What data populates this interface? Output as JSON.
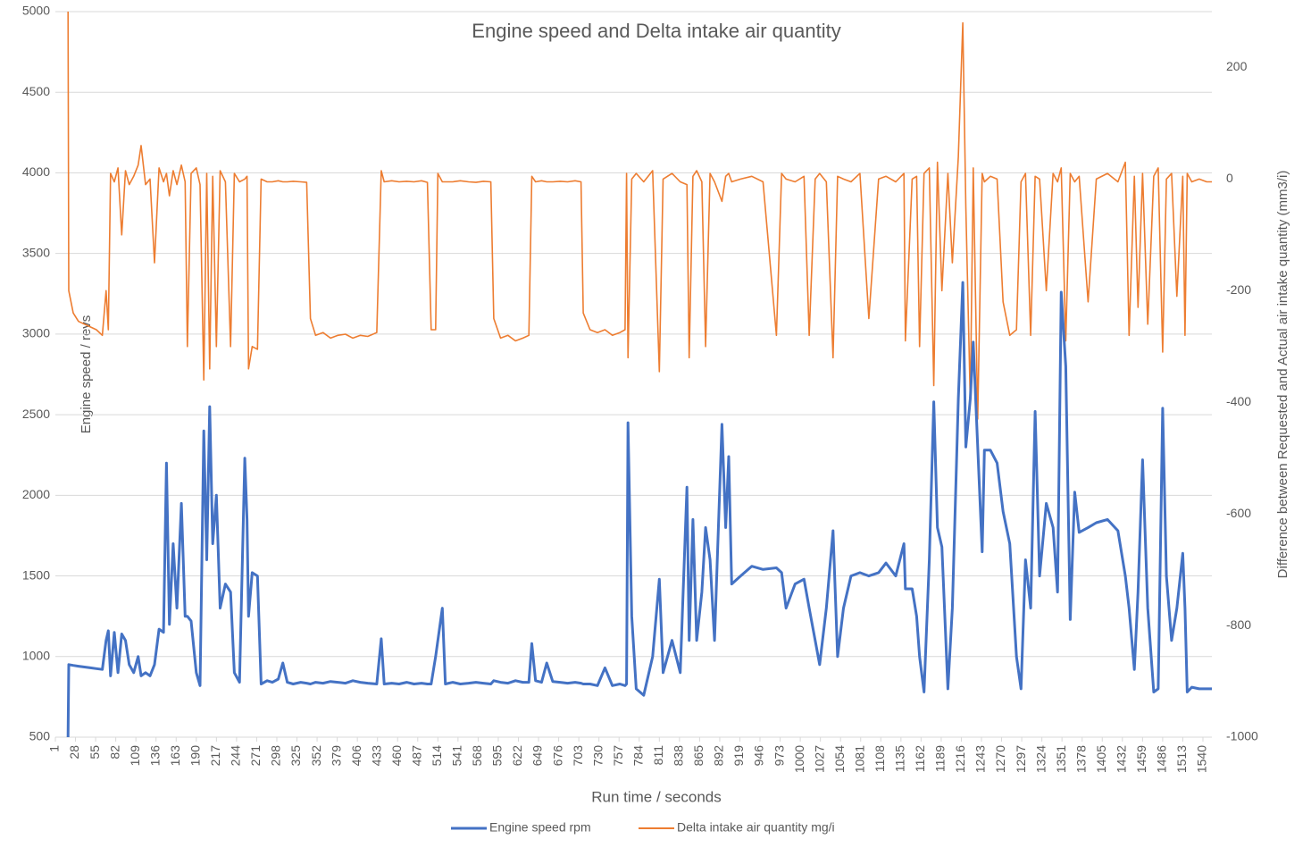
{
  "chart_data": {
    "type": "line",
    "title": "Engine speed and Delta intake air quantity",
    "xlabel": "Run time / seconds",
    "ylabel": "Engine speed / revs",
    "y2label": "Difference between Requested and Actual air intake quantity  (mm3/i)",
    "x": [
      18,
      19,
      25,
      32,
      40,
      48,
      56,
      64,
      69,
      72,
      75,
      80,
      85,
      90,
      95,
      100,
      106,
      112,
      116,
      122,
      128,
      134,
      140,
      146,
      150,
      154,
      159,
      164,
      170,
      175,
      178,
      183,
      190,
      195,
      200,
      204,
      208,
      212,
      217,
      222,
      229,
      236,
      241,
      248,
      255,
      258,
      260,
      265,
      272,
      277,
      285,
      292,
      300,
      306,
      312,
      320,
      330,
      338,
      343,
      350,
      360,
      370,
      380,
      390,
      400,
      410,
      420,
      432,
      438,
      442,
      452,
      462,
      472,
      482,
      492,
      500,
      505,
      511,
      514,
      520,
      524,
      534,
      544,
      555,
      565,
      575,
      585,
      589,
      598,
      608,
      618,
      628,
      636,
      640,
      645,
      653,
      660,
      668,
      678,
      688,
      698,
      706,
      709,
      718,
      728,
      738,
      748,
      758,
      765,
      767,
      769,
      774,
      780,
      790,
      802,
      811,
      816,
      828,
      839,
      848,
      851,
      856,
      861,
      868,
      873,
      879,
      885,
      895,
      900,
      904,
      908,
      920,
      935,
      950,
      968,
      975,
      981,
      993,
      1005,
      1012,
      1020,
      1026,
      1035,
      1044,
      1050,
      1058,
      1068,
      1080,
      1092,
      1105,
      1115,
      1128,
      1139,
      1141,
      1150,
      1156,
      1160,
      1166,
      1173,
      1179,
      1184,
      1190,
      1198,
      1204,
      1212,
      1218,
      1222,
      1228,
      1232,
      1238,
      1244,
      1247,
      1255,
      1264,
      1272,
      1281,
      1290,
      1296,
      1302,
      1309,
      1315,
      1321,
      1330,
      1339,
      1345,
      1350,
      1356,
      1362,
      1368,
      1374,
      1386,
      1397,
      1412,
      1426,
      1436,
      1441,
      1448,
      1453,
      1459,
      1466,
      1474,
      1480,
      1486,
      1491,
      1498,
      1505,
      1513,
      1516,
      1519,
      1525,
      1535,
      1545,
      1552
    ],
    "series": [
      {
        "name": "Engine speed rpm",
        "color": "#4472c4",
        "axis": "y",
        "values": [
          500,
          950,
          945,
          940,
          935,
          930,
          925,
          920,
          1100,
          1160,
          880,
          1150,
          900,
          1140,
          1100,
          950,
          900,
          1000,
          880,
          900,
          880,
          950,
          1170,
          1150,
          2200,
          1200,
          1700,
          1300,
          1950,
          1250,
          1250,
          1220,
          900,
          820,
          2400,
          1600,
          2550,
          1700,
          2000,
          1300,
          1450,
          1400,
          900,
          840,
          2230,
          1850,
          1250,
          1520,
          1500,
          830,
          850,
          840,
          860,
          960,
          840,
          830,
          840,
          835,
          830,
          840,
          835,
          845,
          840,
          835,
          850,
          840,
          835,
          830,
          1110,
          830,
          835,
          830,
          840,
          830,
          835,
          830,
          830,
          1000,
          1100,
          1300,
          830,
          840,
          830,
          835,
          840,
          835,
          830,
          850,
          840,
          835,
          850,
          840,
          840,
          1080,
          850,
          840,
          960,
          845,
          840,
          835,
          840,
          835,
          830,
          830,
          820,
          930,
          820,
          830,
          820,
          830,
          2450,
          1250,
          800,
          760,
          1000,
          1480,
          900,
          1100,
          900,
          2050,
          1100,
          1850,
          1100,
          1400,
          1800,
          1600,
          1100,
          2440,
          1800,
          2240,
          1450,
          1500,
          1560,
          1540,
          1550,
          1520,
          1300,
          1450,
          1480,
          1300,
          1100,
          950,
          1300,
          1780,
          1000,
          1300,
          1500,
          1520,
          1500,
          1520,
          1580,
          1500,
          1700,
          1420,
          1420,
          1250,
          1000,
          780,
          1600,
          2580,
          1800,
          1680,
          800,
          1300,
          2600,
          3320,
          2300,
          2600,
          2950,
          2300,
          1650,
          2280,
          2280,
          2200,
          1900,
          1700,
          1000,
          800,
          1600,
          1300,
          2520,
          1500,
          1950,
          1800,
          1400,
          3260,
          2800,
          1230,
          2020,
          1770,
          1800,
          1830,
          1850,
          1780,
          1500,
          1300,
          920,
          1400,
          2220,
          1300,
          780,
          800,
          2540,
          1500,
          1100,
          1300,
          1640,
          1300,
          780,
          810,
          800,
          800,
          800
        ]
      },
      {
        "name": "Delta intake air quantity mg/i",
        "color": "#ed7d31",
        "axis": "y2",
        "values": [
          300,
          -200,
          -240,
          -255,
          -260,
          -265,
          -270,
          -280,
          -200,
          -270,
          10,
          -5,
          20,
          -100,
          15,
          -10,
          5,
          25,
          60,
          -10,
          0,
          -150,
          20,
          -5,
          10,
          -30,
          15,
          -10,
          25,
          -5,
          -300,
          10,
          20,
          -10,
          -360,
          10,
          -340,
          5,
          -300,
          15,
          -5,
          -300,
          10,
          -5,
          0,
          5,
          -340,
          -300,
          -305,
          0,
          -5,
          -5,
          -3,
          -5,
          -5,
          -4,
          -5,
          -6,
          -250,
          -280,
          -275,
          -285,
          -280,
          -278,
          -285,
          -280,
          -282,
          -275,
          15,
          -5,
          -3,
          -5,
          -4,
          -5,
          -3,
          -6,
          -270,
          -270,
          10,
          -5,
          -5,
          -5,
          -3,
          -5,
          -6,
          -4,
          -5,
          -250,
          -285,
          -280,
          -290,
          -285,
          -280,
          5,
          -5,
          -3,
          -5,
          -5,
          -4,
          -5,
          -3,
          -5,
          -240,
          -270,
          -275,
          -270,
          -280,
          -275,
          -270,
          10,
          -320,
          0,
          10,
          -5,
          15,
          -345,
          0,
          10,
          -5,
          -10,
          -320,
          5,
          15,
          -5,
          -300,
          10,
          -5,
          -40,
          5,
          10,
          -5,
          0,
          5,
          -5,
          -280,
          10,
          0,
          -5,
          5,
          -280,
          0,
          10,
          -5,
          -320,
          5,
          0,
          -5,
          10,
          -250,
          0,
          5,
          -5,
          10,
          -290,
          0,
          5,
          -300,
          10,
          20,
          -370,
          30,
          -200,
          10,
          -150,
          40,
          280,
          -50,
          -400,
          20,
          -430,
          10,
          -5,
          5,
          0,
          -220,
          -280,
          -270,
          -5,
          10,
          -280,
          5,
          0,
          -200,
          10,
          -5,
          20,
          -290,
          10,
          -5,
          5,
          -220,
          0,
          10,
          -5,
          30,
          -280,
          5,
          -230,
          10,
          -260,
          5,
          20,
          -310,
          0,
          10,
          -210,
          5,
          -280,
          10,
          -5,
          0,
          -5,
          -5
        ]
      }
    ],
    "xlim": [
      1,
      1552
    ],
    "xticks": [
      1,
      28,
      55,
      82,
      109,
      136,
      163,
      190,
      217,
      244,
      271,
      298,
      325,
      352,
      379,
      406,
      433,
      460,
      487,
      514,
      541,
      568,
      595,
      622,
      649,
      676,
      703,
      730,
      757,
      784,
      811,
      838,
      865,
      892,
      919,
      946,
      973,
      1000,
      1027,
      1054,
      1081,
      1108,
      1135,
      1162,
      1189,
      1216,
      1243,
      1270,
      1297,
      1324,
      1351,
      1378,
      1405,
      1432,
      1459,
      1486,
      1513,
      1540
    ],
    "ylim": [
      500,
      5000
    ],
    "yticks": [
      500,
      1000,
      1500,
      2000,
      2500,
      3000,
      3500,
      4000,
      4500,
      5000
    ],
    "y2lim": [
      -1000,
      300
    ],
    "y2ticks": [
      -1000,
      -800,
      -600,
      -400,
      -200,
      0,
      200
    ],
    "grid": true,
    "legend": "bottom"
  }
}
